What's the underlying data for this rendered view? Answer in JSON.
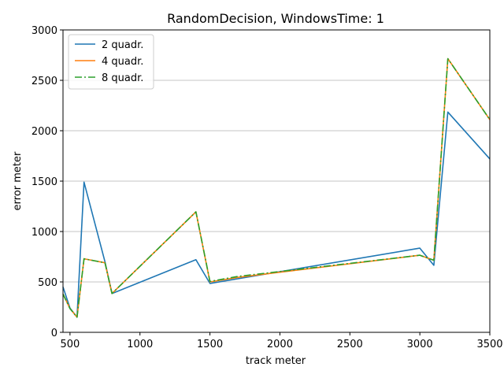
{
  "chart_data": {
    "type": "line",
    "title": "RandomDecision, WindowsTime: 1",
    "xlabel": "track meter",
    "ylabel": "error meter",
    "xlim": [
      450,
      3500
    ],
    "ylim": [
      0,
      3000
    ],
    "xticks": [
      500,
      1000,
      1500,
      2000,
      2500,
      3000,
      3500
    ],
    "yticks": [
      0,
      500,
      1000,
      1500,
      2000,
      2500,
      3000
    ],
    "grid": "horizontal",
    "legend_position": "top-left",
    "series": [
      {
        "name": "2 quadr.",
        "color": "#1f77b4",
        "style": "solid",
        "x": [
          450,
          500,
          550,
          600,
          750,
          800,
          1400,
          1500,
          3000,
          3100,
          3200,
          3500
        ],
        "y": [
          450,
          240,
          150,
          1490,
          700,
          385,
          720,
          485,
          835,
          665,
          2185,
          1720
        ]
      },
      {
        "name": "4 quadr.",
        "color": "#ff7f0e",
        "style": "solid",
        "x": [
          450,
          500,
          550,
          600,
          750,
          800,
          1400,
          1500,
          1700,
          3000,
          3100,
          3200,
          3500
        ],
        "y": [
          380,
          235,
          150,
          730,
          690,
          385,
          1195,
          500,
          545,
          765,
          715,
          2715,
          2110
        ]
      },
      {
        "name": "8 quadr.",
        "color": "#2ca02c",
        "style": "dashdot",
        "x": [
          450,
          500,
          550,
          600,
          750,
          800,
          1400,
          1500,
          1700,
          3000,
          3100,
          3200,
          3500
        ],
        "y": [
          380,
          235,
          150,
          730,
          690,
          385,
          1195,
          505,
          555,
          765,
          715,
          2715,
          2110
        ]
      }
    ]
  }
}
